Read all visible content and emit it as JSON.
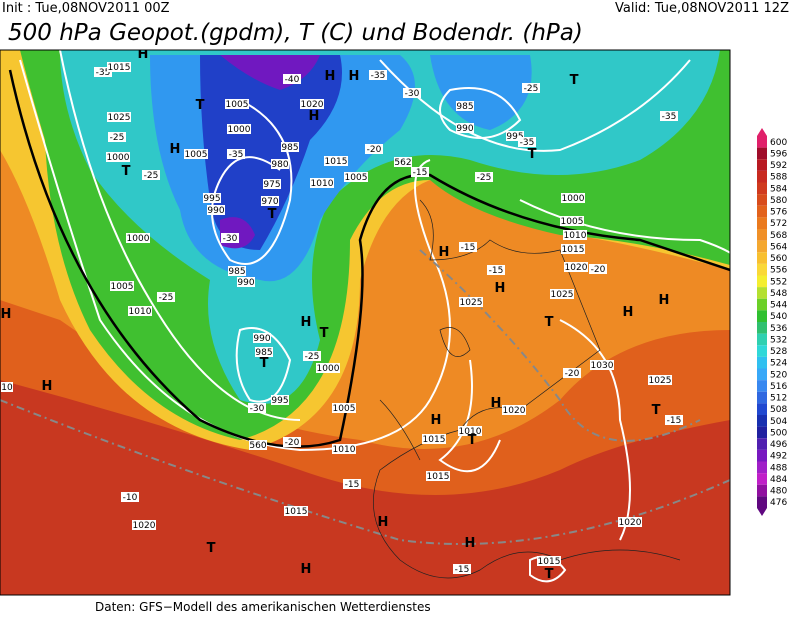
{
  "header": {
    "init": "Init : Tue,08NOV2011 00Z",
    "valid": "Valid: Tue,08NOV2011 12Z",
    "title": "500 hPa Geopot.(gpdm), T (C) und Bodendr. (hPa)"
  },
  "colorbar": {
    "ticks": [
      600,
      596,
      592,
      588,
      584,
      580,
      576,
      572,
      568,
      564,
      560,
      556,
      552,
      548,
      544,
      540,
      536,
      532,
      528,
      524,
      520,
      516,
      512,
      508,
      504,
      500,
      496,
      492,
      488,
      484,
      480,
      476
    ],
    "colors": [
      "#e0206a",
      "#a00d2a",
      "#b81a22",
      "#c82a20",
      "#d03a1e",
      "#d84c1c",
      "#e2621c",
      "#ea7a1e",
      "#f09028",
      "#f4a830",
      "#f8c030",
      "#fad838",
      "#f4ee30",
      "#b4e030",
      "#6cd028",
      "#30c030",
      "#30c070",
      "#30d0b0",
      "#30d8d8",
      "#30c0f0",
      "#38a8f8",
      "#3888f0",
      "#3068e0",
      "#2048d0",
      "#1830b0",
      "#2020a0",
      "#5020b0",
      "#7818c0",
      "#a020c8",
      "#c020c8",
      "#9010a0",
      "#600880"
    ]
  },
  "map": {
    "labels": [
      "H",
      "-35",
      "1015",
      "H",
      "-40",
      "H",
      "-35",
      "-30",
      "985",
      "990",
      "T",
      "-25",
      "-35",
      "T",
      "1005",
      "1020",
      "H",
      "1025",
      "-25",
      "1000",
      "985",
      "995",
      "-35",
      "T",
      "H",
      "1005",
      "-35",
      "1000",
      "T",
      "-25",
      "980",
      "1015",
      "-20",
      "562",
      "-15",
      "975",
      "1010",
      "1005",
      "995",
      "990",
      "970",
      "T",
      "-30",
      "1000",
      "-25",
      "1000",
      "1005",
      "1010",
      "1015",
      "1020",
      "-20",
      "-15",
      "H",
      "-15",
      "H",
      "985",
      "990",
      "1005",
      "-25",
      "1010",
      "H",
      "1025",
      "1025",
      "H",
      "H",
      "T",
      "H",
      "T",
      "990",
      "985",
      "T",
      "-25",
      "1000",
      "1030",
      "-20",
      "1025",
      "H",
      "10",
      "995",
      "1005",
      "-30",
      "H",
      "H",
      "1020",
      "T",
      "-15",
      "102",
      "1015",
      "1010",
      "T",
      "-20",
      "1010",
      "560",
      "1015",
      "-15",
      "-10",
      "1020",
      "1015",
      "H",
      "1020",
      "T",
      "H",
      "H",
      "-15",
      "T",
      "1015"
    ]
  },
  "footer": {
    "source": "Daten: GFS−Modell des amerikanischen Wetterdienstes"
  }
}
